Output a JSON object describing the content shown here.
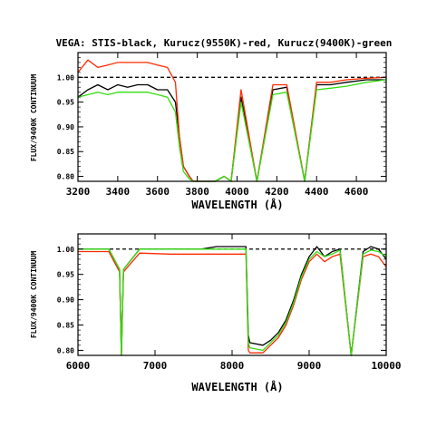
{
  "chart_data": [
    {
      "type": "line",
      "title": "VEGA: STIS-black, Kurucz(9550K)-red, Kurucz(9400K)-green",
      "xlabel": "WAVELENGTH (Å)",
      "ylabel": "FLUX/9400K CONTINUUM",
      "xlim": [
        3200,
        4750
      ],
      "ylim": [
        0.79,
        1.05
      ],
      "xticks": [
        3200,
        3400,
        3600,
        3800,
        4000,
        4200,
        4400,
        4600
      ],
      "yticks": [
        0.8,
        0.85,
        0.9,
        0.95,
        1.0
      ],
      "reference_line": {
        "y": 1.0,
        "style": "dashed",
        "color": "#000000"
      },
      "series": [
        {
          "name": "STIS",
          "color": "#000000",
          "x": [
            3200,
            3250,
            3300,
            3350,
            3400,
            3450,
            3500,
            3550,
            3600,
            3650,
            3690,
            3710,
            3730,
            3760,
            3780,
            3800,
            3850,
            3890,
            3935,
            3970,
            4020,
            4100,
            4180,
            4250,
            4340,
            4400,
            4470,
            4550,
            4650,
            4750
          ],
          "y": [
            0.96,
            0.975,
            0.985,
            0.975,
            0.985,
            0.98,
            0.985,
            0.985,
            0.975,
            0.975,
            0.95,
            0.88,
            0.82,
            0.8,
            0.79,
            0.79,
            0.79,
            0.79,
            0.8,
            0.79,
            0.96,
            0.79,
            0.975,
            0.98,
            0.79,
            0.985,
            0.985,
            0.99,
            0.995,
            0.995
          ]
        },
        {
          "name": "Kurucz 9550K",
          "color": "#ff2a00",
          "x": [
            3200,
            3250,
            3300,
            3350,
            3400,
            3450,
            3500,
            3550,
            3600,
            3650,
            3690,
            3710,
            3730,
            3760,
            3780,
            3800,
            3850,
            3890,
            3935,
            3970,
            4020,
            4100,
            4180,
            4250,
            4340,
            4400,
            4470,
            4550,
            4650,
            4750
          ],
          "y": [
            1.01,
            1.035,
            1.02,
            1.025,
            1.03,
            1.03,
            1.03,
            1.03,
            1.025,
            1.02,
            0.99,
            0.88,
            0.82,
            0.8,
            0.79,
            0.79,
            0.79,
            0.79,
            0.8,
            0.79,
            0.975,
            0.79,
            0.985,
            0.985,
            0.79,
            0.99,
            0.99,
            0.995,
            0.998,
            1.0
          ]
        },
        {
          "name": "Kurucz 9400K",
          "color": "#33dd11",
          "x": [
            3200,
            3250,
            3300,
            3350,
            3400,
            3450,
            3500,
            3550,
            3600,
            3650,
            3690,
            3710,
            3730,
            3760,
            3780,
            3800,
            3850,
            3890,
            3935,
            3970,
            4020,
            4100,
            4180,
            4250,
            4340,
            4400,
            4470,
            4550,
            4650,
            4750
          ],
          "y": [
            0.96,
            0.965,
            0.97,
            0.965,
            0.97,
            0.97,
            0.97,
            0.97,
            0.965,
            0.96,
            0.93,
            0.86,
            0.81,
            0.795,
            0.79,
            0.79,
            0.79,
            0.79,
            0.8,
            0.79,
            0.95,
            0.79,
            0.965,
            0.97,
            0.79,
            0.975,
            0.978,
            0.982,
            0.99,
            0.995
          ]
        }
      ]
    },
    {
      "type": "line",
      "title": "",
      "xlabel": "WAVELENGTH (Å)",
      "ylabel": "FLUX/9400K CONTINUUM",
      "xlim": [
        6000,
        10000
      ],
      "ylim": [
        0.79,
        1.03
      ],
      "xticks": [
        6000,
        7000,
        8000,
        9000,
        10000
      ],
      "yticks": [
        0.8,
        0.85,
        0.9,
        0.95,
        1.0
      ],
      "reference_line": {
        "y": 1.0,
        "style": "dashed",
        "color": "#000000"
      },
      "series": [
        {
          "name": "STIS",
          "color": "#000000",
          "x": [
            6000,
            6400,
            6540,
            6563,
            6590,
            6800,
            7200,
            7600,
            7800,
            8000,
            8180,
            8210,
            8230,
            8400,
            8500,
            8600,
            8700,
            8800,
            8900,
            9000,
            9100,
            9200,
            9300,
            9400,
            9546,
            9700,
            9800,
            9900,
            10000
          ],
          "y": [
            1.0,
            1.0,
            0.96,
            0.79,
            0.96,
            1.0,
            1.0,
            1.0,
            1.005,
            1.005,
            1.005,
            0.83,
            0.815,
            0.81,
            0.82,
            0.835,
            0.86,
            0.9,
            0.95,
            0.985,
            1.005,
            0.985,
            0.995,
            1.0,
            0.79,
            0.995,
            1.005,
            1.0,
            0.98
          ]
        },
        {
          "name": "Kurucz 9550K",
          "color": "#ff2a00",
          "x": [
            6000,
            6400,
            6540,
            6563,
            6590,
            6800,
            7200,
            7600,
            7800,
            8000,
            8180,
            8210,
            8230,
            8400,
            8500,
            8600,
            8700,
            8800,
            8900,
            9000,
            9100,
            9200,
            9300,
            9400,
            9546,
            9700,
            9800,
            9900,
            10000
          ],
          "y": [
            0.995,
            0.995,
            0.955,
            0.79,
            0.955,
            0.992,
            0.99,
            0.99,
            0.99,
            0.99,
            0.99,
            0.8,
            0.795,
            0.795,
            0.81,
            0.825,
            0.85,
            0.89,
            0.94,
            0.975,
            0.99,
            0.975,
            0.985,
            0.99,
            0.79,
            0.985,
            0.99,
            0.985,
            0.965
          ]
        },
        {
          "name": "Kurucz 9400K",
          "color": "#33dd11",
          "x": [
            6000,
            6400,
            6540,
            6563,
            6590,
            6800,
            7200,
            7600,
            7800,
            8000,
            8180,
            8210,
            8230,
            8400,
            8500,
            8600,
            8700,
            8800,
            8900,
            9000,
            9100,
            9200,
            9300,
            9400,
            9546,
            9700,
            9800,
            9900,
            10000
          ],
          "y": [
            1.0,
            1.0,
            0.96,
            0.79,
            0.96,
            1.0,
            1.0,
            1.0,
            1.0,
            1.0,
            1.0,
            0.815,
            0.805,
            0.8,
            0.815,
            0.83,
            0.855,
            0.895,
            0.945,
            0.98,
            0.995,
            0.985,
            0.99,
            0.998,
            0.79,
            0.99,
            0.998,
            0.995,
            0.985
          ]
        }
      ]
    }
  ]
}
